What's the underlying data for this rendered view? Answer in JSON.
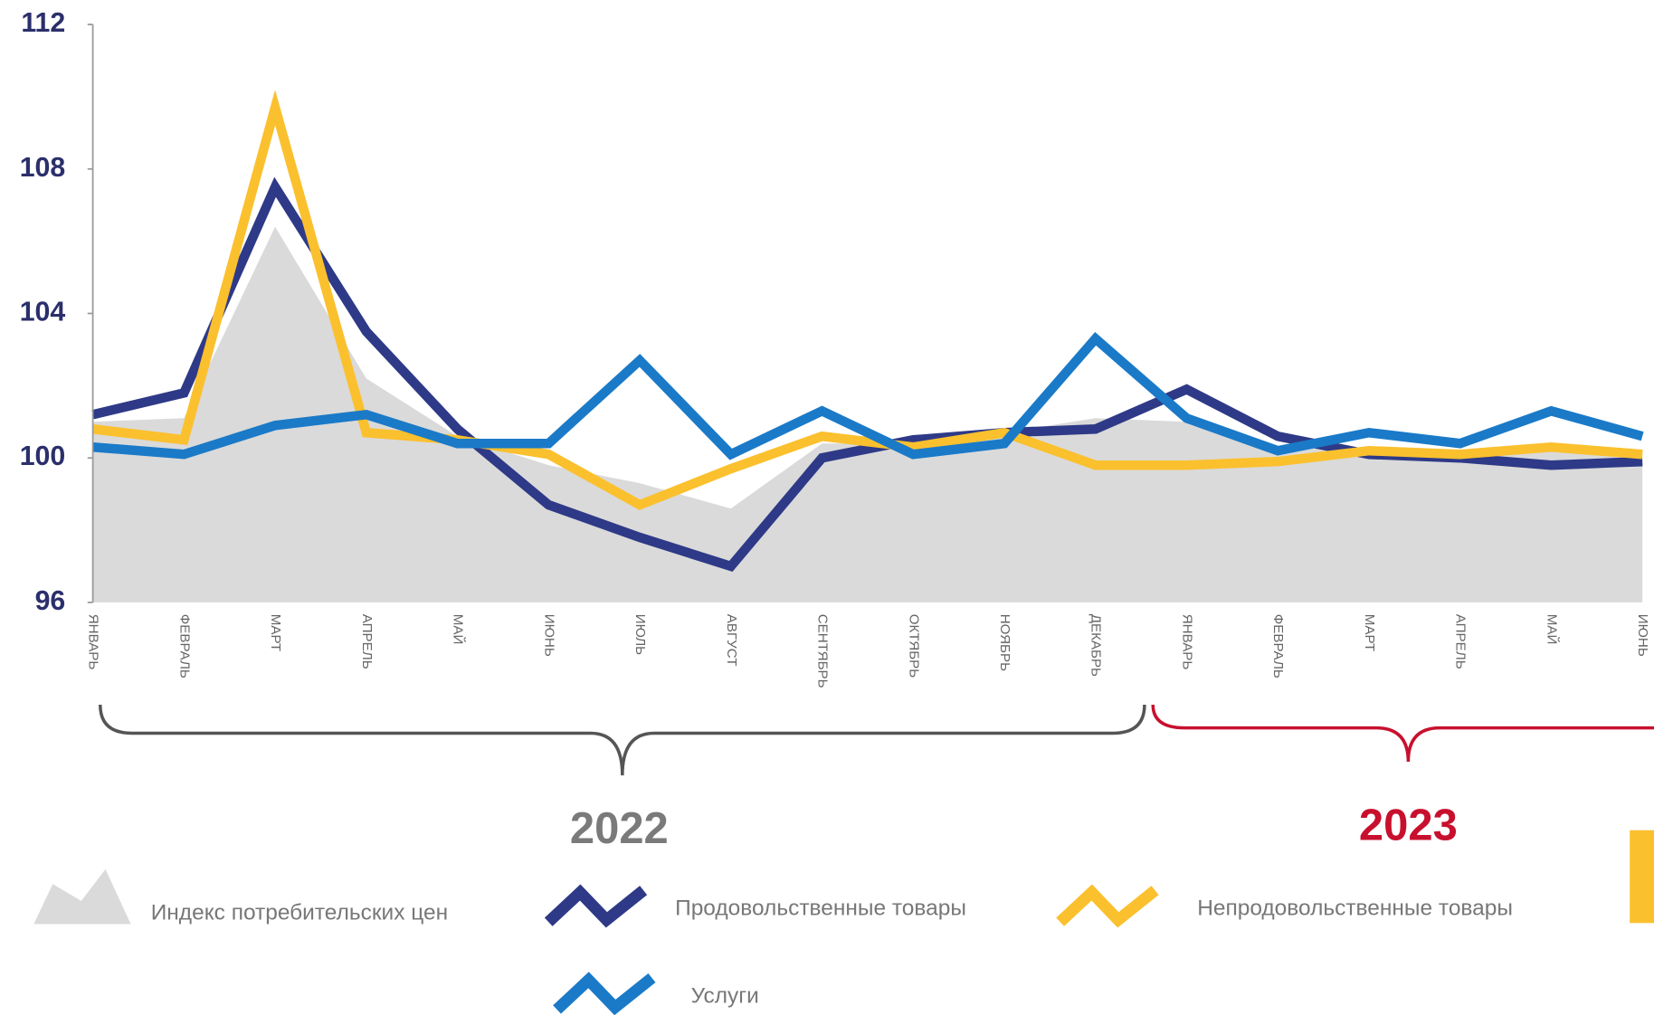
{
  "chart_data": {
    "type": "line",
    "categories": [
      "ЯНВАРЬ",
      "ФЕВРАЛЬ",
      "МАРТ",
      "АПРЕЛЬ",
      "МАЙ",
      "ИЮНЬ",
      "ИЮЛЬ",
      "АВГУСТ",
      "СЕНТЯБРЬ",
      "ОКТЯБРЬ",
      "НОЯБРЬ",
      "ДЕКАБРЬ",
      "ЯНВАРЬ",
      "ФЕВРАЛЬ",
      "МАРТ",
      "АПРЕЛЬ",
      "МАЙ",
      "ИЮНЬ"
    ],
    "series": [
      {
        "name": "Индекс потребительских цен",
        "color": "#dadada",
        "area": true,
        "values": [
          101.0,
          101.1,
          106.4,
          102.2,
          100.6,
          99.8,
          99.3,
          98.6,
          100.4,
          100.4,
          100.7,
          101.1,
          101.0,
          100.3,
          100.2,
          100.1,
          100.2,
          100.1
        ]
      },
      {
        "name": "Продовольственные товары",
        "color": "#2e3a87",
        "values": [
          101.2,
          101.8,
          107.5,
          103.5,
          100.8,
          98.7,
          97.8,
          97.0,
          100.0,
          100.5,
          100.7,
          100.8,
          101.9,
          100.6,
          100.1,
          100.0,
          99.8,
          99.9
        ]
      },
      {
        "name": "Непродовольственные товары",
        "color": "#fbc02d",
        "values": [
          100.8,
          100.5,
          109.7,
          100.7,
          100.5,
          100.1,
          98.7,
          99.7,
          100.6,
          100.3,
          100.7,
          99.8,
          99.8,
          99.9,
          100.2,
          100.1,
          100.3,
          100.1
        ]
      },
      {
        "name": "Услуги",
        "color": "#1a7ac8",
        "values": [
          100.3,
          100.1,
          100.9,
          101.2,
          100.4,
          100.4,
          102.7,
          100.1,
          101.3,
          100.1,
          100.4,
          103.3,
          101.1,
          100.2,
          100.7,
          100.4,
          101.3,
          100.6
        ]
      }
    ],
    "ylim": [
      96,
      112
    ],
    "yticks": [
      96,
      100,
      104,
      108,
      112
    ],
    "grid": false,
    "annotations": [
      "2022",
      "2023"
    ]
  }
}
